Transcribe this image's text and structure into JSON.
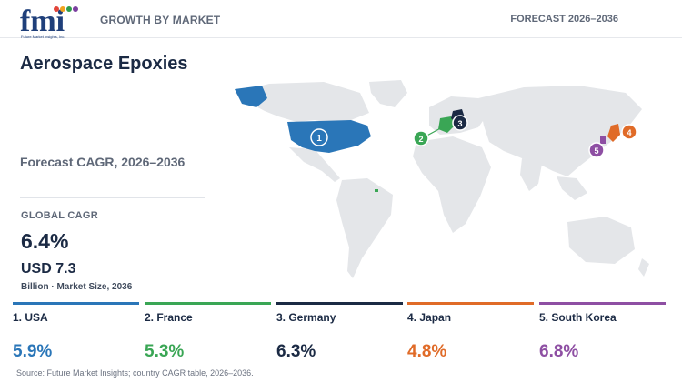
{
  "header": {
    "logo_text": "fmi",
    "logo_tagline": "Future Market Insights, Inc.",
    "section_label": "GROWTH BY MARKET",
    "forecast_label": "FORECAST 2026–2036"
  },
  "title": "Aerospace Epoxies",
  "subtitle": "Forecast CAGR, 2026–2036",
  "global": {
    "label": "GLOBAL CAGR",
    "cagr": "6.4%",
    "market_size": "USD 7.3",
    "market_size_caption": "Billion · Market Size, 2036"
  },
  "countries": [
    {
      "rank": "1",
      "name": "1. USA",
      "cagr": "5.9%",
      "color": "#2a76b8"
    },
    {
      "rank": "2",
      "name": "2. France",
      "cagr": "5.3%",
      "color": "#3aa655"
    },
    {
      "rank": "3",
      "name": "3. Germany",
      "cagr": "6.3%",
      "color": "#1b2a44"
    },
    {
      "rank": "4",
      "name": "4. Japan",
      "cagr": "4.8%",
      "color": "#e06b28"
    },
    {
      "rank": "5",
      "name": "5. South Korea",
      "cagr": "6.8%",
      "color": "#8e4fa3"
    }
  ],
  "map_land_color": "#e4e6e9",
  "source": "Source: Future Market Insights; country CAGR table, 2026–2036."
}
